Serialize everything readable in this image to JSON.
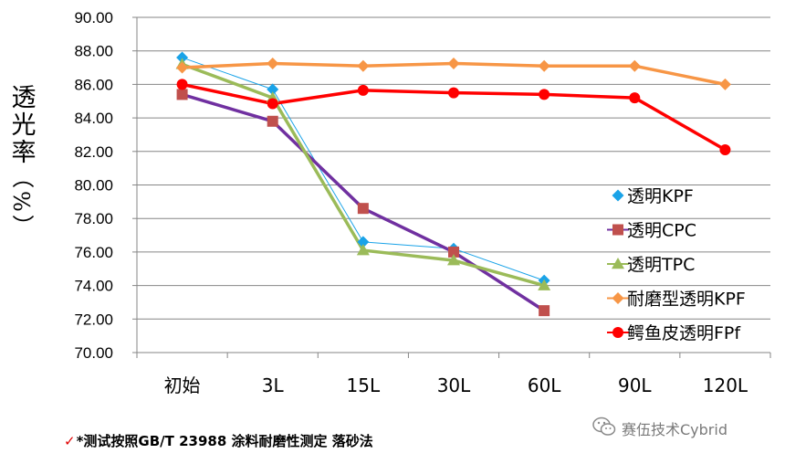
{
  "chart_data": {
    "type": "line",
    "title": "",
    "xlabel": "",
    "ylabel": "透光率",
    "ylabel_unit": "%",
    "categories": [
      "初始",
      "3L",
      "15L",
      "30L",
      "60L",
      "90L",
      "120L"
    ],
    "ylim": [
      70.0,
      90.0
    ],
    "yticks": [
      "70.00",
      "72.00",
      "74.00",
      "76.00",
      "78.00",
      "80.00",
      "82.00",
      "84.00",
      "86.00",
      "88.00",
      "90.00"
    ],
    "grid": true,
    "legend_position": "right",
    "series": [
      {
        "name": "透明KPF",
        "color": "#1aa3e8",
        "marker": "diamond",
        "line_width": "thin",
        "values": [
          87.6,
          85.7,
          76.6,
          76.2,
          74.3,
          null,
          null
        ]
      },
      {
        "name": "透明CPC",
        "color": "#7030a0",
        "marker_color": "#c0504d",
        "marker": "square",
        "line_width": "thick",
        "values": [
          85.4,
          83.8,
          78.6,
          76.0,
          72.5,
          null,
          null
        ]
      },
      {
        "name": "透明TPC",
        "color": "#9bbb59",
        "marker": "triangle",
        "line_width": "thick",
        "values": [
          87.2,
          85.2,
          76.1,
          75.5,
          74.0,
          null,
          null
        ]
      },
      {
        "name": "耐磨型透明KPF",
        "color": "#f79646",
        "marker": "diamond",
        "line_width": "thick",
        "values": [
          87.0,
          87.25,
          87.1,
          87.25,
          87.1,
          87.1,
          86.0
        ]
      },
      {
        "name": "鳄鱼皮透明FPf",
        "color": "#ff0000",
        "marker": "circle",
        "line_width": "thick",
        "values": [
          86.0,
          84.85,
          85.65,
          85.5,
          85.4,
          85.2,
          82.1
        ]
      }
    ]
  },
  "footnote": {
    "check": "✓",
    "text": "*测试按照GB/T 23988 涂料耐磨性测定 落砂法"
  },
  "watermark": {
    "icon": "wechat-icon",
    "text": "赛伍技术Cybrid"
  }
}
